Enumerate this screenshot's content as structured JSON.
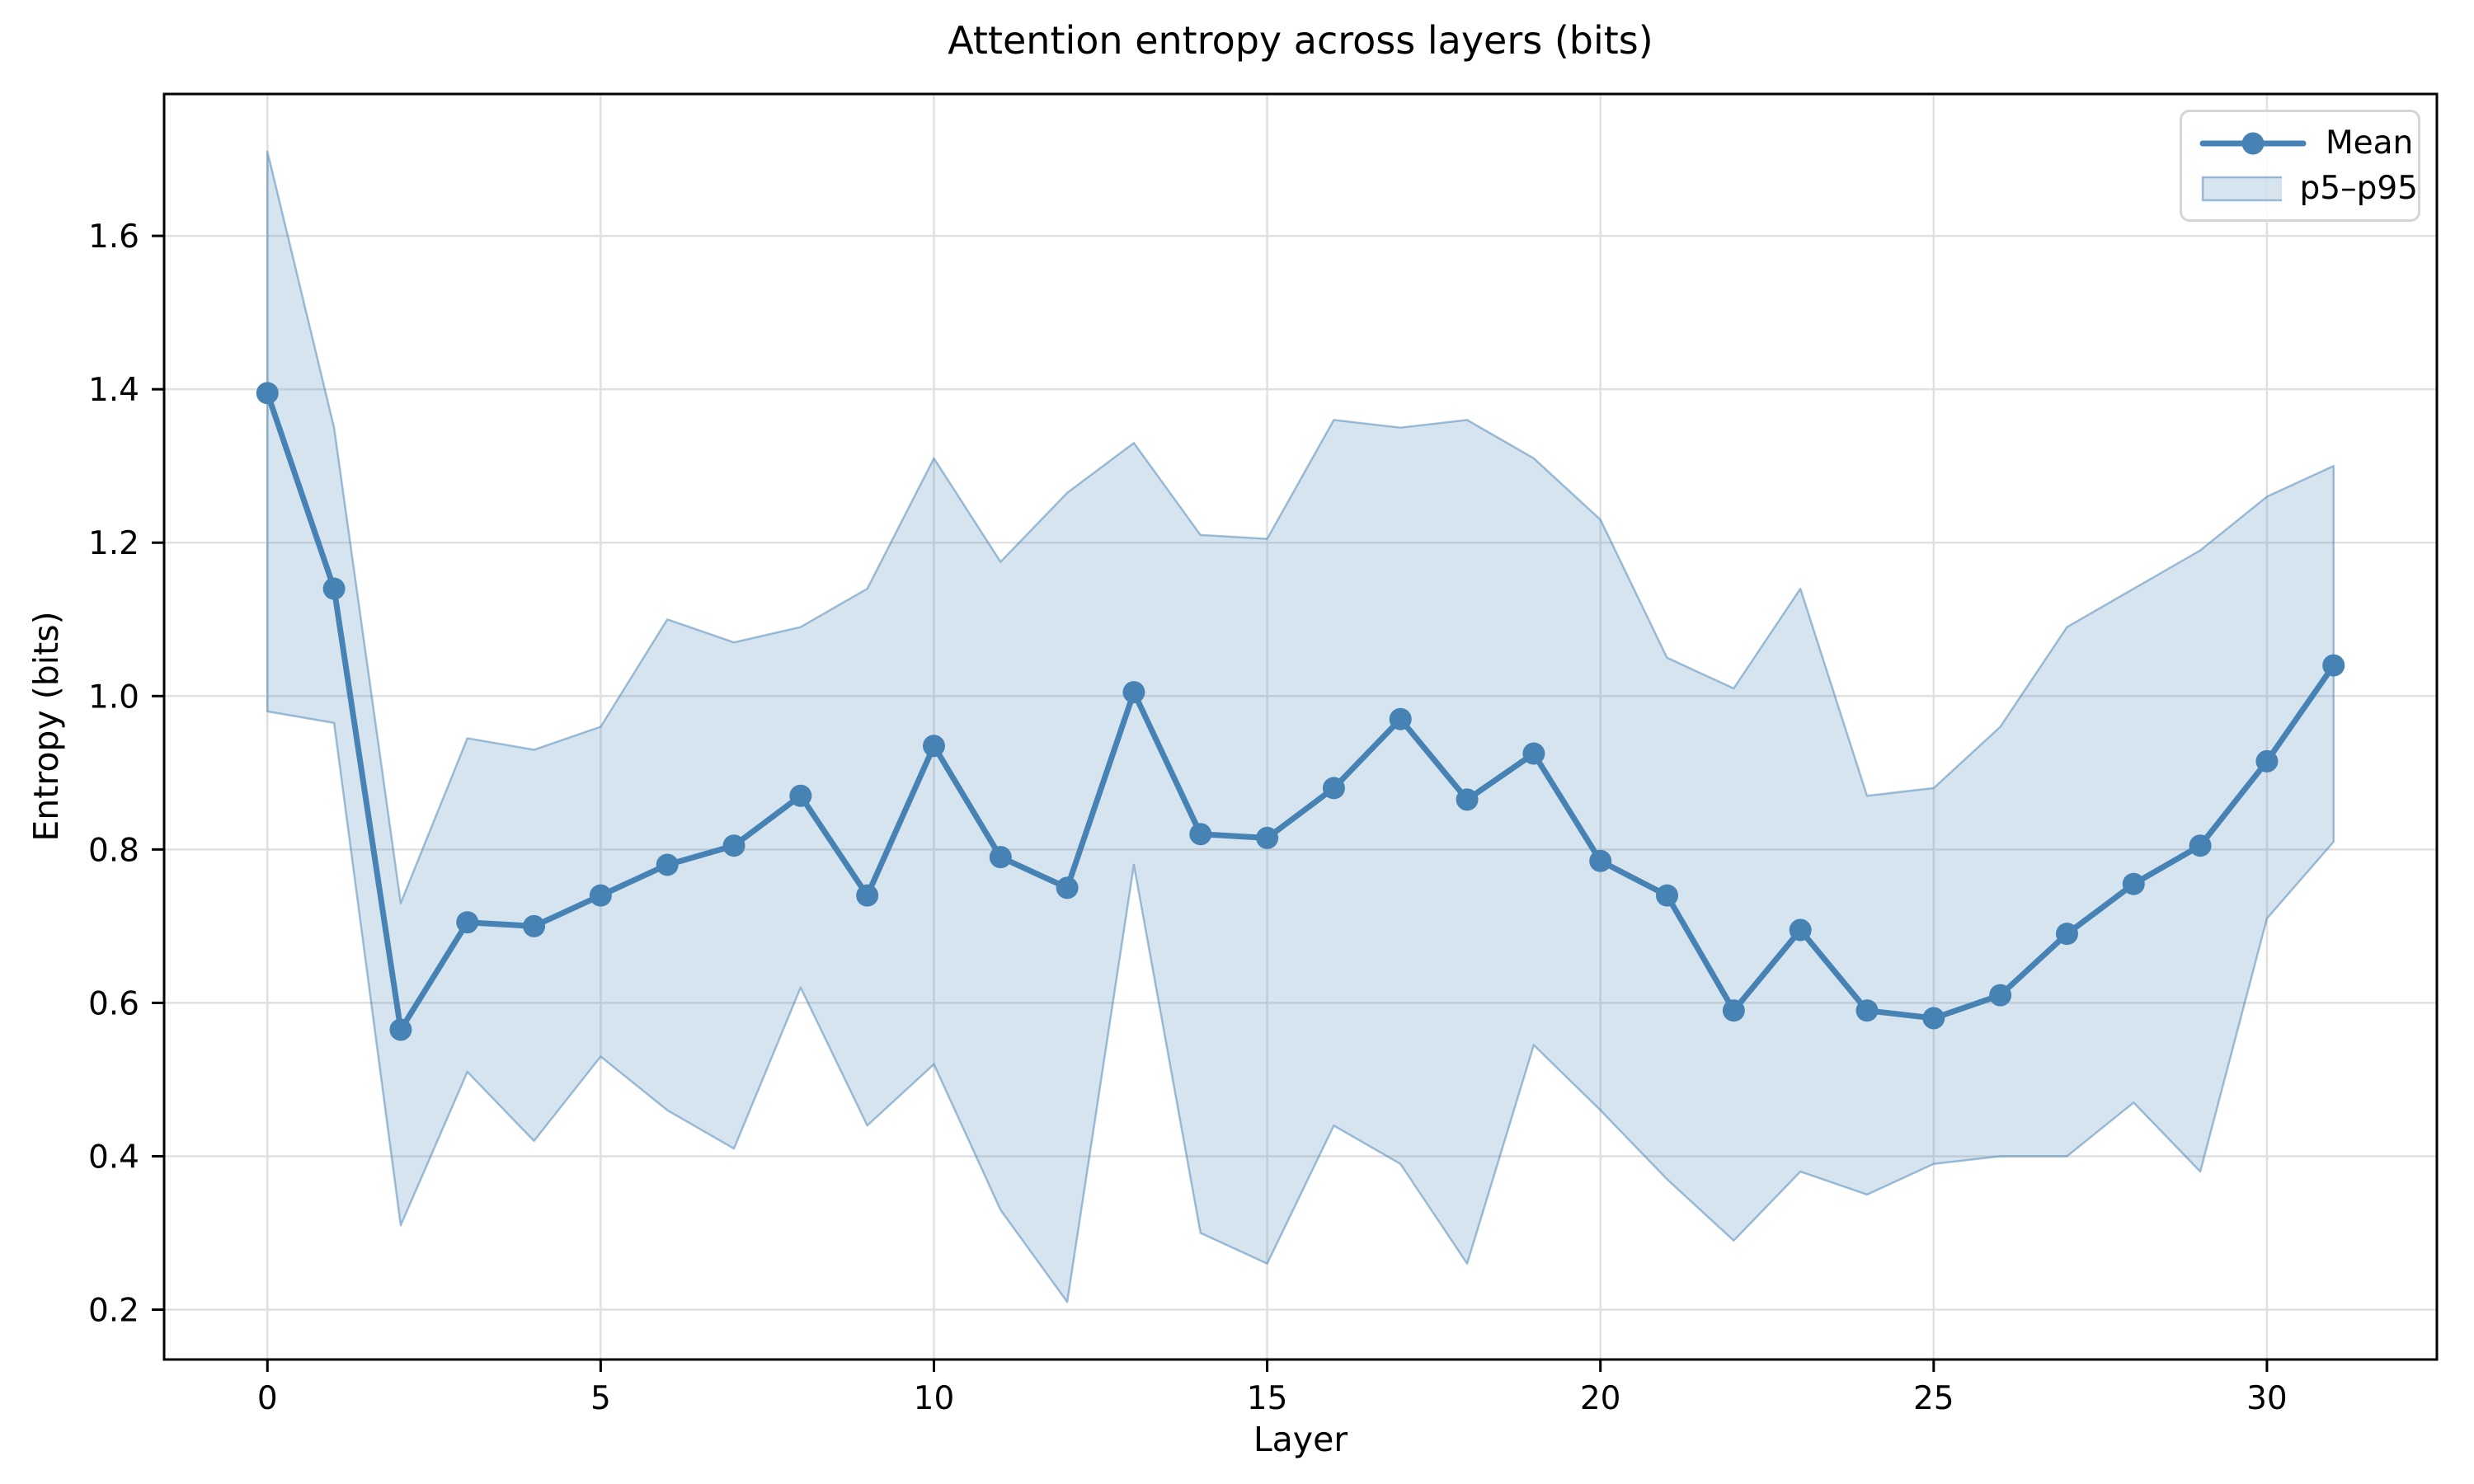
{
  "figure": {
    "title": "Attention entropy across layers (bits)"
  },
  "axes": {
    "xlabel": "Layer",
    "ylabel": "Entropy (bits)"
  },
  "legend": {
    "entries": [
      {
        "label": "Mean",
        "glyph": "line-with-marker"
      },
      {
        "label": "p5–p95",
        "glyph": "filled-band"
      }
    ]
  },
  "colors": {
    "line": "#4682b4",
    "marker": "#4682b4",
    "band_fill": "rgba(70,130,180,0.22)",
    "band_edge": "rgba(70,130,180,0.5)",
    "grid": "#e0e0e0",
    "spine": "#000000",
    "background": "#ffffff"
  },
  "chart_data": {
    "type": "line",
    "title": "Attention entropy across layers (bits)",
    "xlabel": "Layer",
    "ylabel": "Entropy (bits)",
    "legend_position": "upper right",
    "grid": true,
    "x": [
      0,
      1,
      2,
      3,
      4,
      5,
      6,
      7,
      8,
      9,
      10,
      11,
      12,
      13,
      14,
      15,
      16,
      17,
      18,
      19,
      20,
      21,
      22,
      23,
      24,
      25,
      26,
      27,
      28,
      29,
      30,
      31
    ],
    "series": [
      {
        "name": "Mean",
        "type": "line+markers",
        "values": [
          1.395,
          1.14,
          0.565,
          0.705,
          0.7,
          0.74,
          0.78,
          0.805,
          0.87,
          0.74,
          0.935,
          0.79,
          0.75,
          1.005,
          0.82,
          0.815,
          0.88,
          0.97,
          0.865,
          0.925,
          0.785,
          0.74,
          0.59,
          0.695,
          0.59,
          0.58,
          0.61,
          0.69,
          0.755,
          0.805,
          0.915,
          1.04
        ]
      },
      {
        "name": "p5–p95",
        "type": "band",
        "lower_p5": [
          0.98,
          0.965,
          0.31,
          0.51,
          0.42,
          0.53,
          0.46,
          0.41,
          0.62,
          0.44,
          0.52,
          0.33,
          0.21,
          0.78,
          0.3,
          0.26,
          0.44,
          0.39,
          0.26,
          0.545,
          0.46,
          0.37,
          0.29,
          0.38,
          0.35,
          0.39,
          0.4,
          0.4,
          0.47,
          0.38,
          0.71,
          0.81
        ],
        "upper_p95": [
          1.71,
          1.35,
          0.73,
          0.945,
          0.93,
          0.96,
          1.1,
          1.07,
          1.09,
          1.14,
          1.31,
          1.175,
          1.265,
          1.33,
          1.21,
          1.205,
          1.36,
          1.35,
          1.36,
          1.31,
          1.23,
          1.05,
          1.01,
          1.14,
          0.87,
          0.88,
          0.96,
          1.09,
          1.14,
          1.19,
          1.26,
          1.3
        ]
      }
    ],
    "xlim": [
      -1.55,
      32.55
    ],
    "ylim": [
      0.135,
      1.785
    ],
    "xticks": {
      "values": [
        0,
        5,
        10,
        15,
        20,
        25,
        30
      ],
      "labels": [
        "0",
        "5",
        "10",
        "15",
        "20",
        "25",
        "30"
      ]
    },
    "yticks": {
      "values": [
        0.2,
        0.4,
        0.6,
        0.8,
        1.0,
        1.2,
        1.4,
        1.6
      ],
      "labels": [
        "0.2",
        "0.4",
        "0.6",
        "0.8",
        "1.0",
        "1.2",
        "1.4",
        "1.6"
      ]
    }
  }
}
